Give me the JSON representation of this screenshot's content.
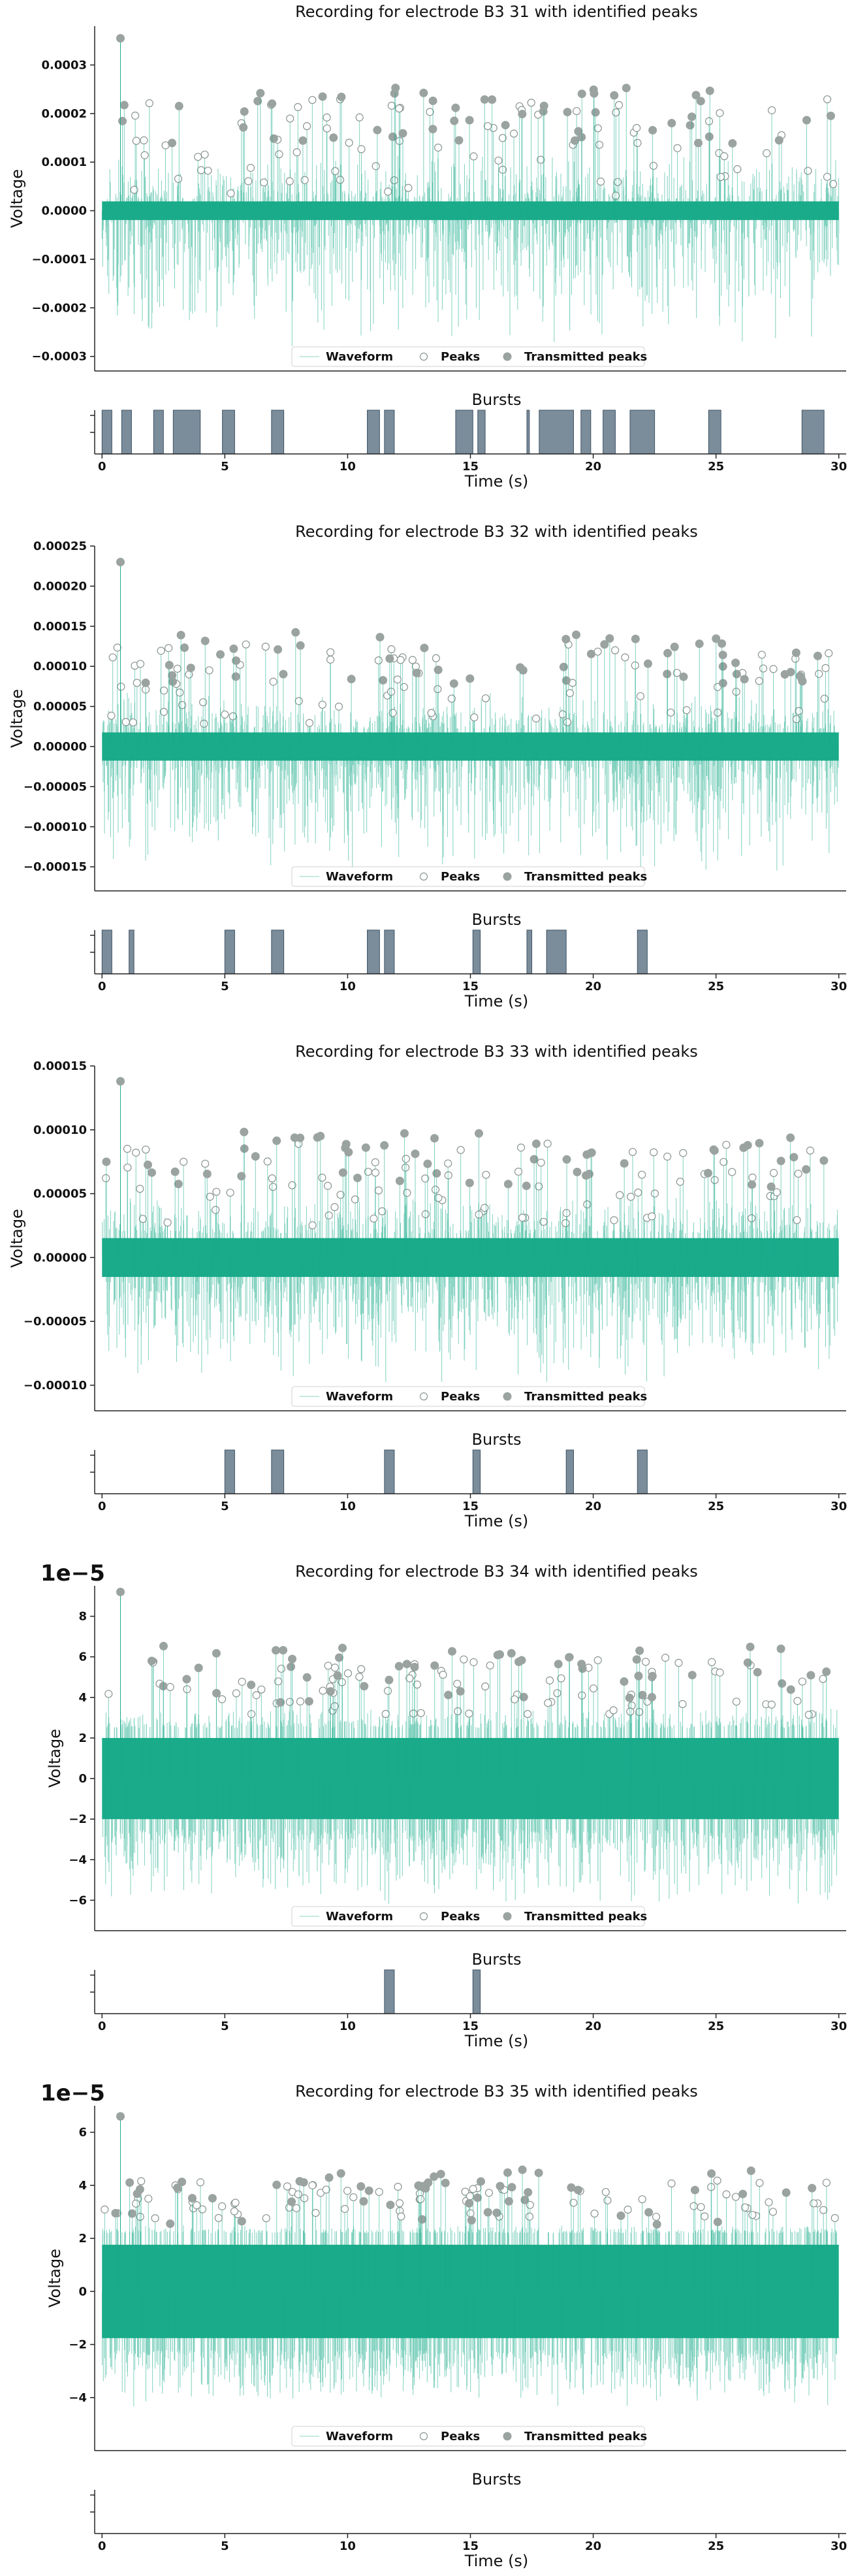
{
  "figure": {
    "legend": {
      "waveform": "Waveform",
      "peaks": "Peaks",
      "transmitted": "Transmitted peaks"
    },
    "burst_title": "Bursts",
    "xlabel": "Time (s)",
    "ylabel": "Voltage",
    "colors": {
      "waveform": "#1aab8a",
      "peak_edge": "#8a9590",
      "transmitted": "#9aa3a0",
      "burst_fill": "#7b8c9a",
      "burst_edge": "#3f5466"
    }
  },
  "chart_data": [
    {
      "type": "line",
      "title": "Recording for electrode B3 31 with identified peaks",
      "ylabel": "Voltage",
      "xlim": [
        -0.3,
        30.3
      ],
      "ylim": [
        -0.00033,
        0.00038
      ],
      "yticks": [
        -0.0003,
        -0.0002,
        -0.0001,
        0.0,
        0.0001,
        0.0002,
        0.0003
      ],
      "ytick_labels": [
        "−0.0003",
        "−0.0002",
        "−0.0001",
        "0.0000",
        "0.0001",
        "0.0002",
        "0.0003"
      ],
      "offset_text": "",
      "noise": 1.2e-05,
      "neg_spike_min": -0.00029,
      "max_peak": {
        "x": 0.75,
        "y": 0.000355
      },
      "transmitted_level": 0.00023,
      "peak_level": 0.00012,
      "seed": 31,
      "bursts": [
        [
          0.0,
          0.4
        ],
        [
          0.8,
          1.2
        ],
        [
          2.1,
          2.5
        ],
        [
          2.9,
          4.0
        ],
        [
          4.9,
          5.4
        ],
        [
          6.9,
          7.4
        ],
        [
          10.8,
          11.3
        ],
        [
          11.5,
          11.9
        ],
        [
          14.4,
          15.1
        ],
        [
          15.3,
          15.6
        ],
        [
          17.3,
          17.4
        ],
        [
          17.8,
          19.2
        ],
        [
          19.5,
          19.9
        ],
        [
          20.4,
          20.9
        ],
        [
          21.5,
          22.5
        ],
        [
          24.7,
          25.2
        ],
        [
          28.5,
          29.4
        ]
      ]
    },
    {
      "type": "line",
      "title": "Recording for electrode B3 32 with identified peaks",
      "ylabel": "Voltage",
      "xlim": [
        -0.3,
        30.3
      ],
      "ylim": [
        -0.00018,
        0.00025
      ],
      "yticks": [
        -0.00015,
        -0.0001,
        -5e-05,
        0.0,
        5e-05,
        0.0001,
        0.00015,
        0.0002,
        0.00025
      ],
      "ytick_labels": [
        "−0.00015",
        "−0.00010",
        "−0.00005",
        "0.00000",
        "0.00005",
        "0.00010",
        "0.00015",
        "0.00020",
        "0.00025"
      ],
      "offset_text": "",
      "noise": 1.1e-05,
      "neg_spike_min": -0.00016,
      "max_peak": {
        "x": 0.75,
        "y": 0.00023
      },
      "transmitted_level": 0.00013,
      "peak_level": 7e-05,
      "seed": 32,
      "bursts": [
        [
          0.0,
          0.4
        ],
        [
          1.1,
          1.3
        ],
        [
          5.0,
          5.4
        ],
        [
          6.9,
          7.4
        ],
        [
          10.8,
          11.3
        ],
        [
          11.5,
          11.9
        ],
        [
          15.1,
          15.4
        ],
        [
          17.3,
          17.5
        ],
        [
          18.1,
          18.9
        ],
        [
          21.8,
          22.2
        ]
      ]
    },
    {
      "type": "line",
      "title": "Recording for electrode B3 33 with identified peaks",
      "ylabel": "Voltage",
      "xlim": [
        -0.3,
        30.3
      ],
      "ylim": [
        -0.00012,
        0.00015
      ],
      "yticks": [
        -0.0001,
        -5e-05,
        0.0,
        5e-05,
        0.0001,
        0.00015
      ],
      "ytick_labels": [
        "−0.00010",
        "−0.00005",
        "0.00000",
        "0.00005",
        "0.00010",
        "0.00015"
      ],
      "offset_text": "",
      "noise": 9.5e-06,
      "neg_spike_min": -0.0001,
      "max_peak": {
        "x": 0.75,
        "y": 0.000138
      },
      "transmitted_level": 9e-05,
      "peak_level": 5e-05,
      "seed": 33,
      "bursts": [
        [
          5.0,
          5.4
        ],
        [
          6.9,
          7.4
        ],
        [
          11.5,
          11.9
        ],
        [
          15.1,
          15.4
        ],
        [
          18.9,
          19.2
        ],
        [
          21.8,
          22.2
        ]
      ]
    },
    {
      "type": "line",
      "title": "Recording for electrode B3 34 with identified peaks",
      "ylabel": "Voltage",
      "xlim": [
        -0.3,
        30.3
      ],
      "ylim": [
        -7.5e-05,
        9.5e-05
      ],
      "yticks": [
        -6e-05,
        -4e-05,
        -2e-05,
        0.0,
        2e-05,
        4e-05,
        6e-05,
        8e-05
      ],
      "ytick_labels": [
        "−6",
        "−4",
        "−2",
        "0",
        "2",
        "4",
        "6",
        "8"
      ],
      "offset_text": "1e−5",
      "noise": 1.25e-05,
      "neg_spike_min": -6.3e-05,
      "max_peak": {
        "x": 0.75,
        "y": 9.2e-05
      },
      "transmitted_level": 6e-05,
      "peak_level": 3.5e-05,
      "seed": 34,
      "bursts": [
        [
          11.5,
          11.9
        ],
        [
          15.1,
          15.4
        ]
      ]
    },
    {
      "type": "line",
      "title": "Recording for electrode B3 35 with identified peaks",
      "ylabel": "Voltage",
      "xlim": [
        -0.3,
        30.3
      ],
      "ylim": [
        -6e-05,
        7e-05
      ],
      "yticks": [
        -4e-05,
        -2e-05,
        0.0,
        2e-05,
        4e-05,
        6e-05
      ],
      "ytick_labels": [
        "−4",
        "−2",
        "0",
        "2",
        "4",
        "6"
      ],
      "offset_text": "1e−5",
      "noise": 1.1e-05,
      "neg_spike_min": -4.5e-05,
      "max_peak": {
        "x": 0.75,
        "y": 6.6e-05
      },
      "transmitted_level": 4.2e-05,
      "peak_level": 2.5e-05,
      "seed": 35,
      "bursts": []
    }
  ],
  "burst_axis": {
    "xticks": [
      0,
      5,
      10,
      15,
      20,
      25,
      30
    ],
    "xtick_labels": [
      "0",
      "5",
      "10",
      "15",
      "20",
      "25",
      "30"
    ]
  }
}
